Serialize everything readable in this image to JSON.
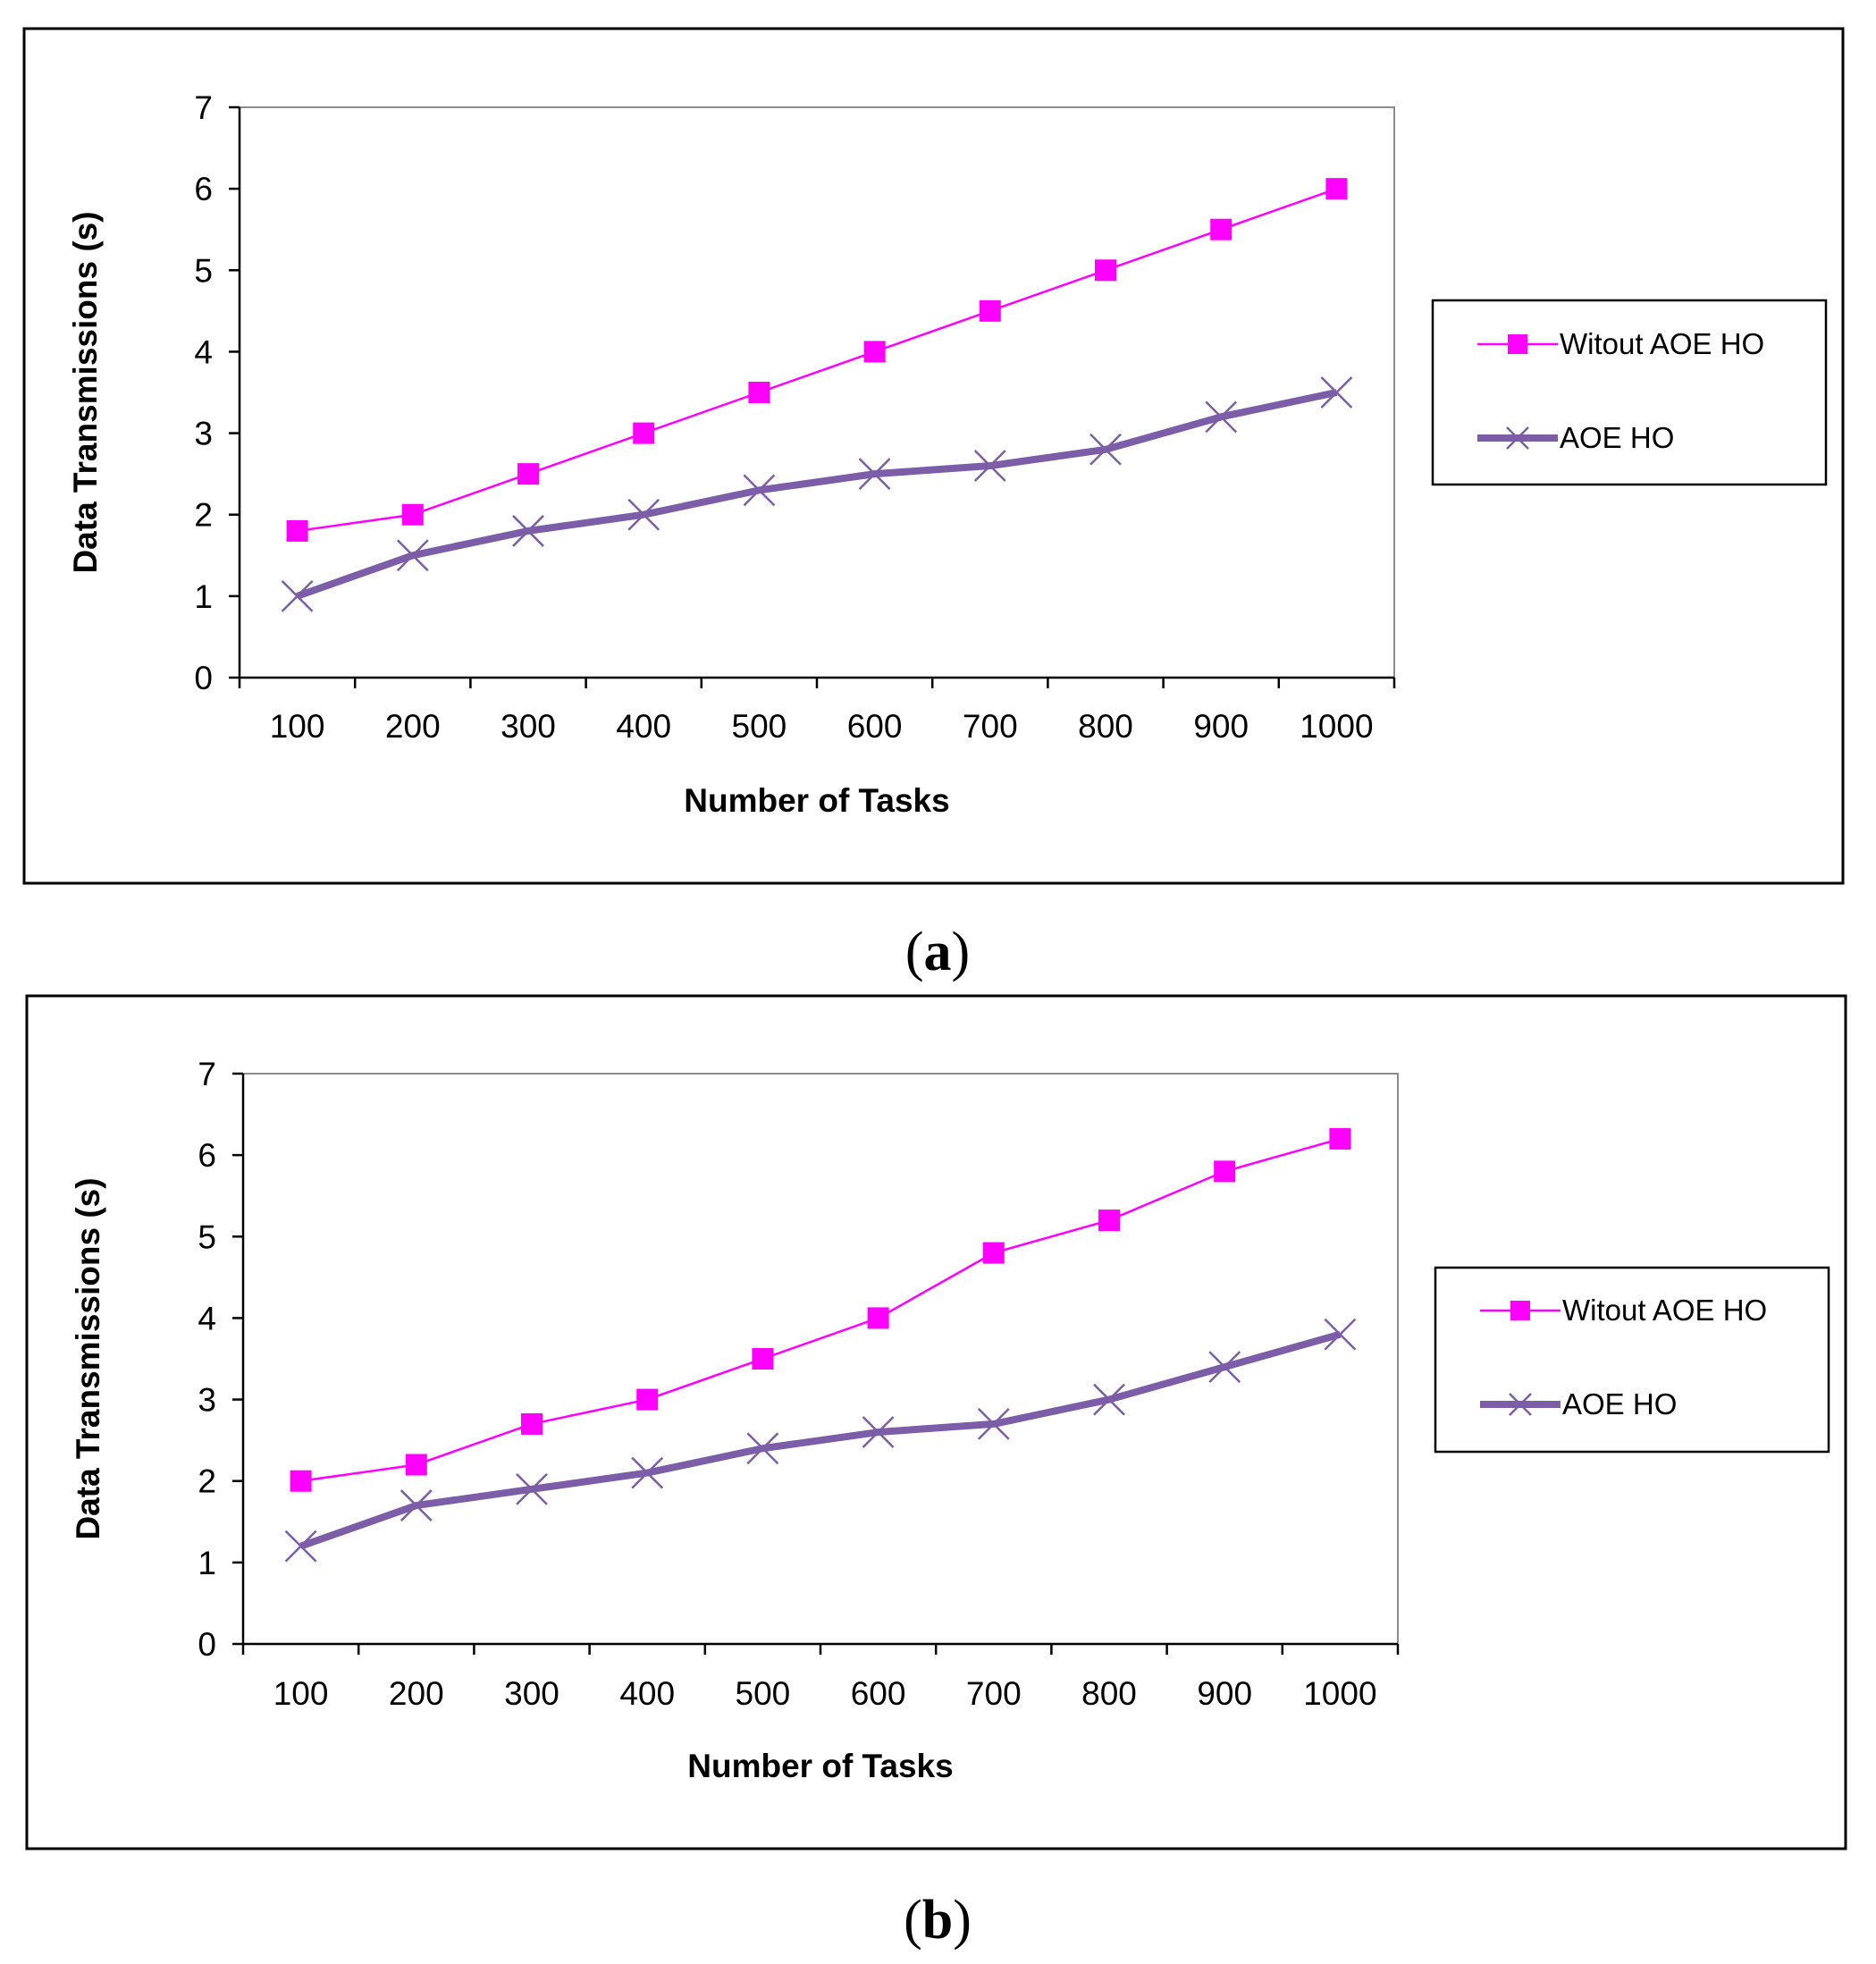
{
  "chart_data": [
    {
      "type": "line",
      "panel_label": "a",
      "title": "",
      "xlabel": "Number of Tasks",
      "ylabel": "Data Transmissions (s)",
      "ylim": [
        0,
        7
      ],
      "yticks": [
        "0",
        "1",
        "2",
        "3",
        "4",
        "5",
        "6",
        "7"
      ],
      "categories": [
        "100",
        "200",
        "300",
        "400",
        "500",
        "600",
        "700",
        "800",
        "900",
        "1000"
      ],
      "grid": false,
      "legend_position": "right",
      "series": [
        {
          "name": "Witout AOE HO",
          "color": "#ff00ff",
          "marker": "square",
          "values": [
            1.8,
            2.0,
            2.5,
            3.0,
            3.5,
            4.0,
            4.5,
            5.0,
            5.5,
            6.0
          ]
        },
        {
          "name": "AOE HO",
          "color": "#7b5ea7",
          "marker": "x",
          "values": [
            1.0,
            1.5,
            1.8,
            2.0,
            2.3,
            2.5,
            2.6,
            2.8,
            3.2,
            3.5
          ]
        }
      ]
    },
    {
      "type": "line",
      "panel_label": "b",
      "title": "",
      "xlabel": "Number of Tasks",
      "ylabel": "Data Transmissions (s)",
      "ylim": [
        0,
        7
      ],
      "yticks": [
        "0",
        "1",
        "2",
        "3",
        "4",
        "5",
        "6",
        "7"
      ],
      "categories": [
        "100",
        "200",
        "300",
        "400",
        "500",
        "600",
        "700",
        "800",
        "900",
        "1000"
      ],
      "grid": false,
      "legend_position": "right",
      "series": [
        {
          "name": "Witout AOE HO",
          "color": "#ff00ff",
          "marker": "square",
          "values": [
            2.0,
            2.2,
            2.7,
            3.0,
            3.5,
            4.0,
            4.8,
            5.2,
            5.8,
            6.2
          ]
        },
        {
          "name": "AOE HO",
          "color": "#7b5ea7",
          "marker": "x",
          "values": [
            1.2,
            1.7,
            1.9,
            2.1,
            2.4,
            2.6,
            2.7,
            3.0,
            3.4,
            3.8
          ]
        }
      ]
    }
  ]
}
